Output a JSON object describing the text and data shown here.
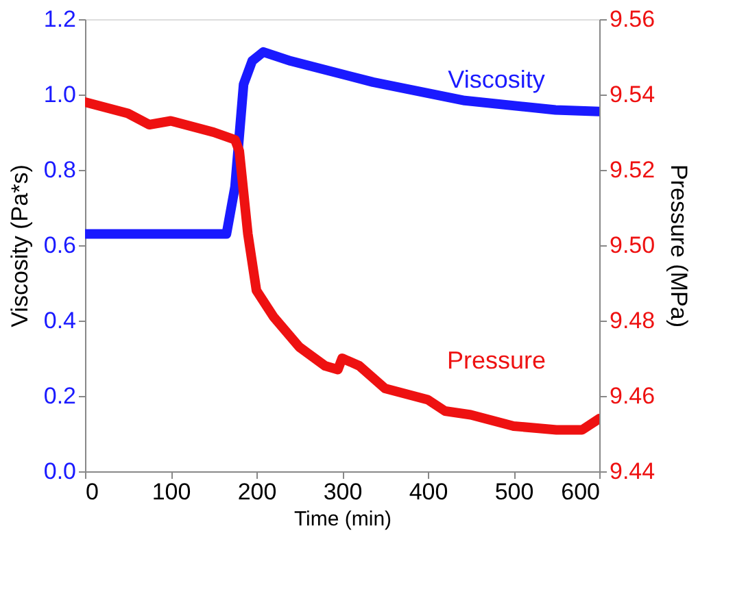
{
  "chart_data": {
    "type": "line",
    "xlabel": "Time (min)",
    "ylabel": "Viscosity (Pa*s)",
    "y2label": "Pressure (MPa)",
    "xlim": [
      0,
      600
    ],
    "xticks": [
      0,
      100,
      200,
      300,
      400,
      500,
      600
    ],
    "ylim": [
      0,
      1.2
    ],
    "yticks": [
      {
        "value": 0,
        "label": "0.0"
      },
      0.2,
      0.4,
      0.6,
      0.8,
      {
        "value": 1,
        "label": "1.0"
      },
      1.2
    ],
    "y2lim": [
      9.44,
      9.56
    ],
    "y2ticks": [
      9.44,
      9.46,
      9.48,
      {
        "value": 9.5,
        "label": "9.50"
      },
      9.52,
      9.54,
      9.56
    ],
    "grid": false,
    "marker": "none",
    "line_style": "solid",
    "series": [
      {
        "name": "Viscosity",
        "color": "#1a1aff",
        "x": [
          0,
          100,
          165,
          175,
          185,
          195,
          208,
          240,
          336,
          443,
          549,
          600
        ],
        "values": [
          0.63,
          0.63,
          0.63,
          0.755,
          1.027,
          1.089,
          1.113,
          1.089,
          1.033,
          0.984,
          0.959,
          0.955
        ]
      },
      {
        "name": "Pressure",
        "color": "#ee1111",
        "axis": "y2",
        "x": [
          0,
          50,
          75,
          100,
          150,
          175,
          180,
          190,
          200,
          220,
          250,
          280,
          295,
          300,
          320,
          350,
          400,
          420,
          450,
          500,
          550,
          580,
          600
        ],
        "values": [
          9.538,
          9.535,
          9.532,
          9.533,
          9.53,
          9.528,
          9.525,
          9.503,
          9.488,
          9.481,
          9.473,
          9.468,
          9.467,
          9.47,
          9.468,
          9.462,
          9.459,
          9.456,
          9.455,
          9.452,
          9.451,
          9.451,
          9.454
        ]
      }
    ]
  }
}
